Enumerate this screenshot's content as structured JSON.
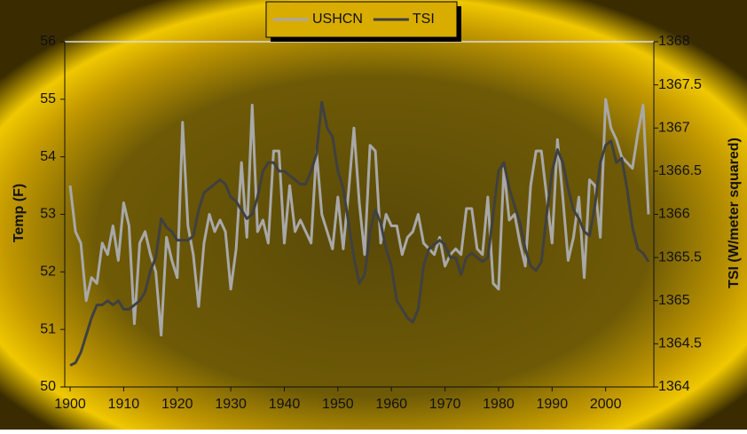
{
  "chart_data": {
    "type": "line",
    "ylabel": "Temp (F)",
    "y2label": "TSI (W/meter squared)",
    "x": [
      1900,
      1901,
      1902,
      1903,
      1904,
      1905,
      1906,
      1907,
      1908,
      1909,
      1910,
      1911,
      1912,
      1913,
      1914,
      1915,
      1916,
      1917,
      1918,
      1919,
      1920,
      1921,
      1922,
      1923,
      1924,
      1925,
      1926,
      1927,
      1928,
      1929,
      1930,
      1931,
      1932,
      1933,
      1934,
      1935,
      1936,
      1937,
      1938,
      1939,
      1940,
      1941,
      1942,
      1943,
      1944,
      1945,
      1946,
      1947,
      1948,
      1949,
      1950,
      1951,
      1952,
      1953,
      1954,
      1955,
      1956,
      1957,
      1958,
      1959,
      1960,
      1961,
      1962,
      1963,
      1964,
      1965,
      1966,
      1967,
      1968,
      1969,
      1970,
      1971,
      1972,
      1973,
      1974,
      1975,
      1976,
      1977,
      1978,
      1979,
      1980,
      1981,
      1982,
      1983,
      1984,
      1985,
      1986,
      1987,
      1988,
      1989,
      1990,
      1991,
      1992,
      1993,
      1994,
      1995,
      1996,
      1997,
      1998,
      1999,
      2000,
      2001,
      2002,
      2003,
      2004,
      2005,
      2006,
      2007,
      2008
    ],
    "series": [
      {
        "name": "USHCN",
        "color": "#a8a8a8",
        "values": [
          53.5,
          52.7,
          52.5,
          51.5,
          51.9,
          51.8,
          52.5,
          52.3,
          52.8,
          52.2,
          53.2,
          52.8,
          51.1,
          52.5,
          52.7,
          52.3,
          52.0,
          50.9,
          52.6,
          52.2,
          51.9,
          54.6,
          52.8,
          52.3,
          51.4,
          52.5,
          53.0,
          52.7,
          52.9,
          52.7,
          51.7,
          52.4,
          53.9,
          52.6,
          54.9,
          52.7,
          52.9,
          52.5,
          54.1,
          54.1,
          52.5,
          53.5,
          52.7,
          52.9,
          52.7,
          52.5,
          54.1,
          53.0,
          52.7,
          52.4,
          53.3,
          52.4,
          53.4,
          54.5,
          53.2,
          52.3,
          54.2,
          54.1,
          52.5,
          53.0,
          52.8,
          52.8,
          52.3,
          52.6,
          52.7,
          53.0,
          52.5,
          52.4,
          52.3,
          52.6,
          52.1,
          52.3,
          52.4,
          52.3,
          53.1,
          53.1,
          52.4,
          52.3,
          53.3,
          51.8,
          51.7,
          53.8,
          52.9,
          53.0,
          52.5,
          52.1,
          53.5,
          54.1,
          54.1,
          53.3,
          52.5,
          54.3,
          53.3,
          52.2,
          52.6,
          53.3,
          51.9,
          53.6,
          53.5,
          52.6,
          55.0,
          54.5,
          54.3,
          54.0,
          53.9,
          53.8,
          54.4,
          54.9,
          53.0
        ]
      },
      {
        "name": "TSI",
        "color": "#404040",
        "axis": "y2",
        "values": [
          1364.25,
          1364.28,
          1364.4,
          1364.6,
          1364.8,
          1364.95,
          1364.95,
          1365.0,
          1364.95,
          1365.0,
          1364.9,
          1364.9,
          1364.95,
          1365.0,
          1365.1,
          1365.35,
          1365.5,
          1365.95,
          1365.85,
          1365.8,
          1365.7,
          1365.7,
          1365.7,
          1365.75,
          1366.05,
          1366.25,
          1366.3,
          1366.35,
          1366.4,
          1366.35,
          1366.2,
          1366.15,
          1366.05,
          1365.95,
          1366.0,
          1366.2,
          1366.5,
          1366.6,
          1366.6,
          1366.5,
          1366.5,
          1366.45,
          1366.4,
          1366.35,
          1366.35,
          1366.5,
          1366.7,
          1367.3,
          1367.0,
          1366.9,
          1366.5,
          1366.3,
          1365.9,
          1365.5,
          1365.2,
          1365.3,
          1365.8,
          1366.05,
          1365.9,
          1365.6,
          1365.4,
          1365.0,
          1364.9,
          1364.8,
          1364.75,
          1364.9,
          1365.4,
          1365.6,
          1365.65,
          1365.7,
          1365.65,
          1365.5,
          1365.5,
          1365.3,
          1365.5,
          1365.55,
          1365.5,
          1365.45,
          1365.5,
          1366.0,
          1366.5,
          1366.6,
          1366.3,
          1366.1,
          1365.9,
          1365.6,
          1365.4,
          1365.35,
          1365.45,
          1366.0,
          1366.5,
          1366.75,
          1366.6,
          1366.3,
          1366.05,
          1365.95,
          1365.8,
          1365.75,
          1366.1,
          1366.6,
          1366.8,
          1366.85,
          1366.6,
          1366.65,
          1366.3,
          1365.85,
          1365.6,
          1365.55,
          1365.45
        ]
      }
    ],
    "xlim": [
      1899,
      2009
    ],
    "xticks": [
      1900,
      1910,
      1920,
      1930,
      1940,
      1950,
      1960,
      1970,
      1980,
      1990,
      2000
    ],
    "ylim": [
      50,
      56
    ],
    "yticks": [
      50,
      51,
      52,
      53,
      54,
      55,
      56
    ],
    "y2lim": [
      1364,
      1368
    ],
    "y2ticks": [
      1364,
      1364.5,
      1365,
      1365.5,
      1366,
      1366.5,
      1367,
      1367.5,
      1368
    ],
    "legend": "top"
  }
}
